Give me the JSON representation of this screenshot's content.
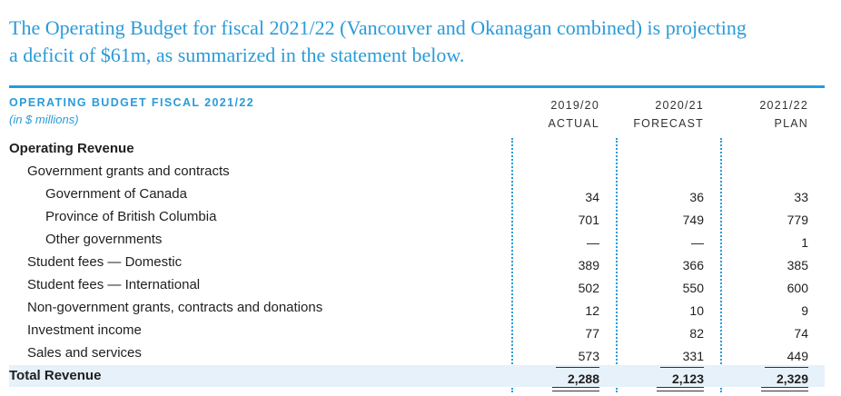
{
  "intro": {
    "line1": "The Operating Budget for fiscal 2021/22 (Vancouver and Okanagan combined) is projecting",
    "line2": "a deficit of $61m, as summarized in the statement below."
  },
  "table": {
    "title": "OPERATING BUDGET FISCAL 2021/22",
    "subtitle": "(in $ millions)",
    "columns": [
      {
        "year": "2019/20",
        "type": "ACTUAL"
      },
      {
        "year": "2020/21",
        "type": "FORECAST"
      },
      {
        "year": "2021/22",
        "type": "PLAN"
      }
    ],
    "rows": [
      {
        "label": "Operating Revenue",
        "level": 0,
        "bold": true,
        "values": [
          "",
          "",
          ""
        ]
      },
      {
        "label": "Government grants and contracts",
        "level": 1,
        "bold": false,
        "values": [
          "",
          "",
          ""
        ]
      },
      {
        "label": "Government of Canada",
        "level": 2,
        "bold": false,
        "values": [
          "34",
          "36",
          "33"
        ]
      },
      {
        "label": "Province of British Columbia",
        "level": 2,
        "bold": false,
        "values": [
          "701",
          "749",
          "779"
        ]
      },
      {
        "label": "Other governments",
        "level": 2,
        "bold": false,
        "values": [
          "—",
          "—",
          "1"
        ]
      },
      {
        "label": "Student fees — Domestic",
        "level": 1,
        "bold": false,
        "values": [
          "389",
          "366",
          "385"
        ]
      },
      {
        "label": "Student fees — International",
        "level": 1,
        "bold": false,
        "values": [
          "502",
          "550",
          "600"
        ]
      },
      {
        "label": "Non-government grants, contracts and donations",
        "level": 1,
        "bold": false,
        "values": [
          "12",
          "10",
          "9"
        ]
      },
      {
        "label": "Investment income",
        "level": 1,
        "bold": false,
        "values": [
          "77",
          "82",
          "74"
        ]
      },
      {
        "label": "Sales and services",
        "level": 1,
        "bold": false,
        "values": [
          "573",
          "331",
          "449"
        ]
      },
      {
        "label": "Total Revenue",
        "level": 0,
        "bold": true,
        "values": [
          "2,288",
          "2,123",
          "2,329"
        ]
      }
    ]
  }
}
